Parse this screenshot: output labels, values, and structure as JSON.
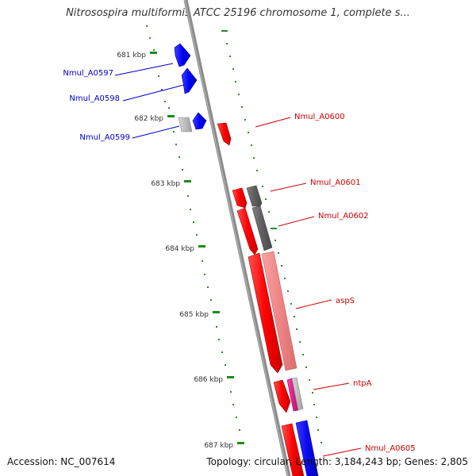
{
  "map": {
    "title": "Nitrosospira multiformis ATCC 25196 chromosome 1, complete s...",
    "accession": "Accession: NC_007614",
    "topology": "Topology: circular; Length: 3,184,243 bp; Genes: 2,805"
  },
  "scale": {
    "ticks": [
      {
        "label": "681 kbp"
      },
      {
        "label": "682 kbp"
      },
      {
        "label": "683 kbp"
      },
      {
        "label": "684 kbp"
      },
      {
        "label": "685 kbp"
      },
      {
        "label": "686 kbp"
      },
      {
        "label": "687 kbp"
      }
    ]
  },
  "genes": [
    {
      "name": "Nmul_A0597",
      "strand": "reverse",
      "color": "#0000cc"
    },
    {
      "name": "Nmul_A0598",
      "strand": "reverse",
      "color": "#0000cc"
    },
    {
      "name": "Nmul_A0599",
      "strand": "reverse",
      "color": "#0000cc"
    },
    {
      "name": "Nmul_A0600",
      "strand": "forward",
      "color": "#cc0000"
    },
    {
      "name": "Nmul_A0601",
      "strand": "forward",
      "color": "#cc0000"
    },
    {
      "name": "Nmul_A0602",
      "strand": "forward",
      "color": "#cc0000"
    },
    {
      "name": "aspS",
      "strand": "forward",
      "color": "#cc0000"
    },
    {
      "name": "ntpA",
      "strand": "forward",
      "color": "#cc0000"
    },
    {
      "name": "Nmul_A0605",
      "strand": "forward",
      "color": "#cc0000"
    }
  ],
  "colors": {
    "backbone": "#8a8a8a",
    "tick_marks": "#1a8a1a",
    "reverse_gene": "#0000ff",
    "forward_gene": "#ff0000",
    "homolog_dark": "#666666",
    "homolog_light_gray": "#bbbbbb",
    "homolog_pink": "#f28a8a",
    "homolog_magenta": "#e0208a",
    "homolog_blue": "#0a0af0"
  }
}
